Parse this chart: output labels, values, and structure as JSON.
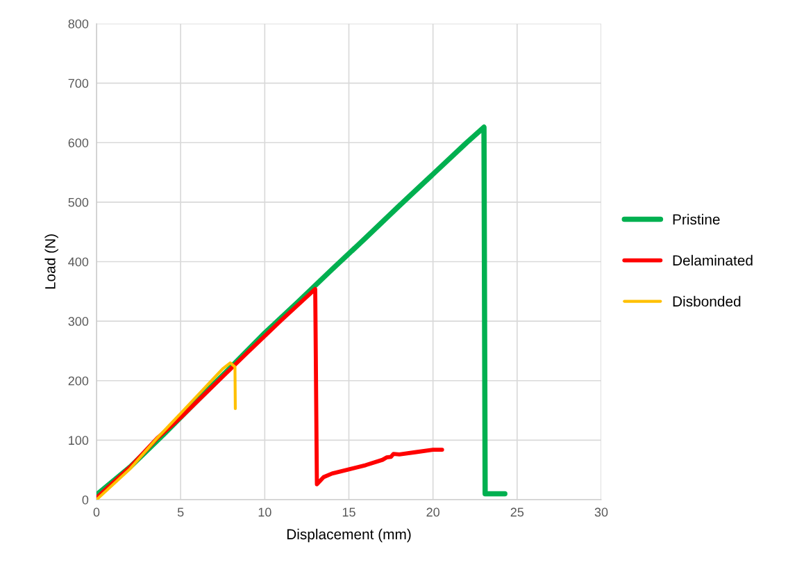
{
  "chart_data": {
    "type": "line",
    "xlabel": "Displacement (mm)",
    "ylabel": "Load (N)",
    "xlim": [
      0,
      30
    ],
    "xticks": [
      0,
      5,
      10,
      15,
      20,
      25,
      30
    ],
    "ylim": [
      0,
      800
    ],
    "yticks": [
      0,
      100,
      200,
      300,
      400,
      500,
      600,
      700,
      800
    ],
    "grid": true,
    "legend": "right",
    "marker": "none",
    "line_style": "solid",
    "series": [
      {
        "name": "Pristine",
        "color": "#00b050",
        "x": [
          0,
          2,
          4,
          6,
          8,
          10,
          12,
          14,
          16,
          18,
          20,
          22,
          23.03,
          23.1,
          24.27
        ],
        "values": [
          8,
          55,
          110,
          167,
          223,
          280,
          333,
          387,
          440,
          494,
          547,
          600,
          626,
          10,
          10
        ]
      },
      {
        "name": "Delaminated",
        "color": "#ff0000",
        "x": [
          0,
          2,
          3.6,
          5,
          7,
          9,
          11,
          13.0,
          13.1,
          13.5,
          14,
          15,
          16,
          17,
          17.24,
          17.5,
          17.65,
          18,
          19,
          20,
          20.54
        ],
        "values": [
          3,
          55,
          103,
          138,
          193,
          248,
          302,
          354,
          26,
          38,
          44,
          51,
          58,
          67,
          71,
          72,
          77,
          76,
          80,
          84,
          84
        ]
      },
      {
        "name": "Disbonded",
        "color": "#ffc000",
        "x": [
          0,
          2,
          3.62,
          5,
          6,
          7,
          7.5,
          7.95,
          8.23,
          8.25
        ],
        "values": [
          0,
          52,
          104,
          145,
          175,
          205,
          220,
          230,
          223,
          153
        ]
      }
    ]
  }
}
